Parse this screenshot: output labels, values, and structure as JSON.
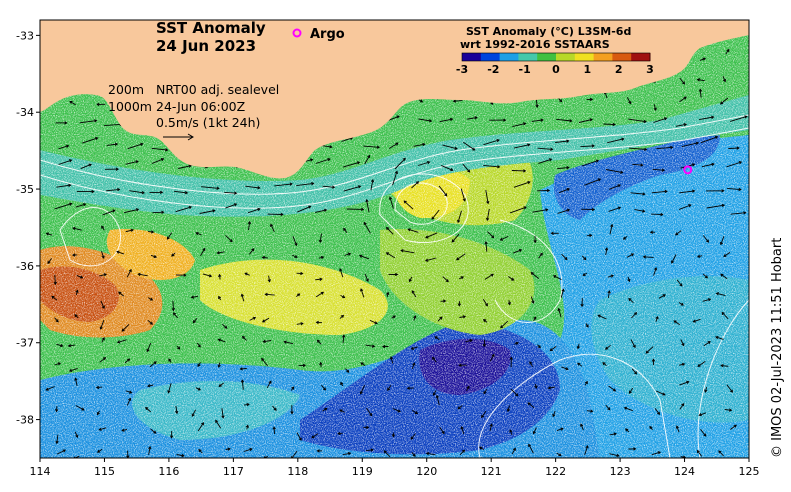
{
  "map": {
    "title_line1": "SST Anomaly",
    "title_line2": "24 Jun 2023",
    "legend_argo": "Argo",
    "colorbar_title_line1": "SST Anomaly (°C) L3SM-6d",
    "colorbar_title_line2": "wrt 1992-2016 SSTAARS",
    "colorbar_ticks": [
      "-3",
      "-2",
      "-1",
      "0",
      "1",
      "2",
      "3"
    ],
    "colorbar_colors": [
      "#1a0099",
      "#0044dd",
      "#1ea0e6",
      "#44c8aa",
      "#40c040",
      "#b8d828",
      "#f0e020",
      "#f4a020",
      "#d85a10",
      "#a01010"
    ],
    "contour_200m": "200m",
    "contour_1000m": "1000m",
    "sealevel_label": "NRT00 adj. sealevel",
    "time_label": "24-Jun 06:00Z",
    "scale_label": "0.5m/s (1kt 24h)",
    "credit": "© IMOS 02-Jul-2023 11:51 Hobart",
    "x_ticks": [
      "114",
      "115",
      "116",
      "117",
      "118",
      "119",
      "120",
      "121",
      "122",
      "123",
      "124",
      "125"
    ],
    "y_ticks": [
      "-33",
      "-34",
      "-35",
      "-36",
      "-37",
      "-38"
    ],
    "land_color": "#f8c89c",
    "argo_color": "#ff00ff",
    "argo_float": {
      "lon": 124.05,
      "lat": -34.75
    }
  }
}
